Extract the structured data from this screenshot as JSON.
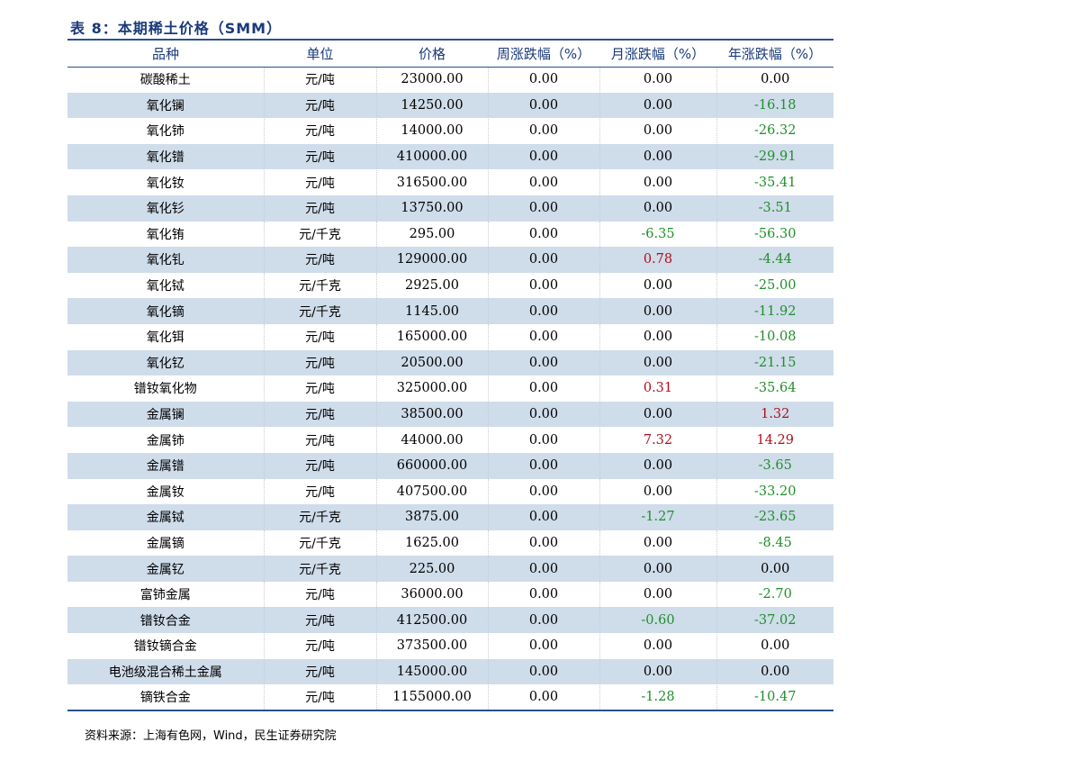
{
  "title": "表 8：本期稀土价格（SMM）",
  "columns": [
    "品种",
    "单位",
    "价格",
    "周涨跌幅（%）",
    "月涨跌幅（%）",
    "年涨跌幅（%）"
  ],
  "rows": [
    [
      "碳酸稀土",
      "元/吨",
      "23000.00",
      "0.00",
      "0.00",
      "0.00"
    ],
    [
      "氧化镧",
      "元/吨",
      "14250.00",
      "0.00",
      "0.00",
      "-16.18"
    ],
    [
      "氧化铈",
      "元/吨",
      "14000.00",
      "0.00",
      "0.00",
      "-26.32"
    ],
    [
      "氧化镨",
      "元/吨",
      "410000.00",
      "0.00",
      "0.00",
      "-29.91"
    ],
    [
      "氧化钕",
      "元/吨",
      "316500.00",
      "0.00",
      "0.00",
      "-35.41"
    ],
    [
      "氧化钐",
      "元/吨",
      "13750.00",
      "0.00",
      "0.00",
      "-3.51"
    ],
    [
      "氧化铕",
      "元/千克",
      "295.00",
      "0.00",
      "-6.35",
      "-56.30"
    ],
    [
      "氧化钆",
      "元/吨",
      "129000.00",
      "0.00",
      "0.78",
      "-4.44"
    ],
    [
      "氧化铽",
      "元/千克",
      "2925.00",
      "0.00",
      "0.00",
      "-25.00"
    ],
    [
      "氧化镝",
      "元/千克",
      "1145.00",
      "0.00",
      "0.00",
      "-11.92"
    ],
    [
      "氧化铒",
      "元/吨",
      "165000.00",
      "0.00",
      "0.00",
      "-10.08"
    ],
    [
      "氧化钇",
      "元/吨",
      "20500.00",
      "0.00",
      "0.00",
      "-21.15"
    ],
    [
      "镨钕氧化物",
      "元/吨",
      "325000.00",
      "0.00",
      "0.31",
      "-35.64"
    ],
    [
      "金属镧",
      "元/吨",
      "38500.00",
      "0.00",
      "0.00",
      "1.32"
    ],
    [
      "金属铈",
      "元/吨",
      "44000.00",
      "0.00",
      "7.32",
      "14.29"
    ],
    [
      "金属镨",
      "元/吨",
      "660000.00",
      "0.00",
      "0.00",
      "-3.65"
    ],
    [
      "金属钕",
      "元/吨",
      "407500.00",
      "0.00",
      "0.00",
      "-33.20"
    ],
    [
      "金属铽",
      "元/千克",
      "3875.00",
      "0.00",
      "-1.27",
      "-23.65"
    ],
    [
      "金属镝",
      "元/千克",
      "1625.00",
      "0.00",
      "0.00",
      "-8.45"
    ],
    [
      "金属钇",
      "元/千克",
      "225.00",
      "0.00",
      "0.00",
      "0.00"
    ],
    [
      "富铈金属",
      "元/吨",
      "36000.00",
      "0.00",
      "0.00",
      "-2.70"
    ],
    [
      "镨钕合金",
      "元/吨",
      "412500.00",
      "0.00",
      "-0.60",
      "-37.02"
    ],
    [
      "镨钕镝合金",
      "元/吨",
      "373500.00",
      "0.00",
      "0.00",
      "0.00"
    ],
    [
      "电池级混合稀土金属",
      "元/吨",
      "145000.00",
      "0.00",
      "0.00",
      "0.00"
    ],
    [
      "镝铁合金",
      "元/吨",
      "1155000.00",
      "0.00",
      "-1.28",
      "-10.47"
    ]
  ],
  "source": "资料来源：上海有色网，Wind，民生证券研究院",
  "colors": {
    "header": "#1a3a7a",
    "stripe": "#cfdcea",
    "negative": "#1f8f2a",
    "positive": "#b0101a"
  }
}
